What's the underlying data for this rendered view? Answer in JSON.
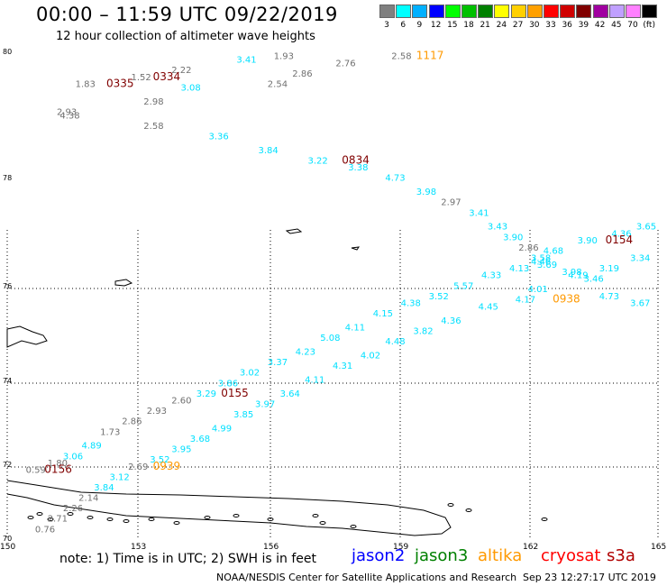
{
  "title": "00:00 – 11:59 UTC 09/22/2019",
  "subtitle": "12 hour collection of altimeter wave heights",
  "legend": {
    "colors": [
      "#808080",
      "#00ffff",
      "#00b0ff",
      "#0000ff",
      "#00ff00",
      "#00c000",
      "#008000",
      "#ffff00",
      "#ffd000",
      "#ffa000",
      "#ff0000",
      "#d00000",
      "#800000",
      "#a000a0",
      "#c0a0ff",
      "#ff80ff",
      "#000000"
    ],
    "labels": [
      "3",
      "6",
      "9",
      "12",
      "15",
      "18",
      "21",
      "24",
      "27",
      "30",
      "33",
      "36",
      "39",
      "42",
      "45",
      "70",
      "(ft)"
    ]
  },
  "axes": {
    "lon_ticks": [
      "150",
      "153",
      "156",
      "159",
      "162",
      "165"
    ],
    "lat_ticks": [
      "80",
      "78",
      "76",
      "74",
      "72",
      "70"
    ]
  },
  "notes": {
    "text": "note: 1) Time is in UTC; 2) SWH is in feet",
    "credit": "NOAA/NESDIS Center for Satellite Applications and Research",
    "generated": "Sep 23 12:27:17 UTC 2019"
  },
  "satellites": [
    {
      "name": "jason2",
      "color": "#0000ff"
    },
    {
      "name": "jason3",
      "color": "#008000"
    },
    {
      "name": "altika",
      "color": "#ff9900"
    },
    {
      "name": "cryosat",
      "color": "#ff0000"
    },
    {
      "name": "s3a",
      "color": "#b00000"
    }
  ],
  "colors": {
    "gray": "#707070",
    "cyan": "#00e0ff",
    "orange": "#ff9900",
    "maroon": "#800000"
  },
  "readings": [
    {
      "text": "1.93",
      "lon": 152.6,
      "lat": 79.8,
      "c": "gray"
    },
    {
      "text": "2.76",
      "lon": 154.6,
      "lat": 79.7,
      "c": "gray"
    },
    {
      "text": "2.58",
      "lon": 156.4,
      "lat": 79.8,
      "c": "gray"
    },
    {
      "text": "1117",
      "lon": 157.2,
      "lat": 79.8,
      "c": "orange"
    },
    {
      "text": "3.41",
      "lon": 151.4,
      "lat": 79.75,
      "c": "cyan"
    },
    {
      "text": "2.22",
      "lon": 149.3,
      "lat": 79.6,
      "c": "gray"
    },
    {
      "text": "2.86",
      "lon": 153.2,
      "lat": 79.55,
      "c": "gray"
    },
    {
      "text": "1.52",
      "lon": 148.0,
      "lat": 79.5,
      "c": "gray"
    },
    {
      "text": "0334",
      "lon": 148.7,
      "lat": 79.5,
      "c": "maroon"
    },
    {
      "text": "2.54",
      "lon": 152.4,
      "lat": 79.4,
      "c": "gray"
    },
    {
      "text": "1.83",
      "lon": 146.2,
      "lat": 79.4,
      "c": "gray"
    },
    {
      "text": "0335",
      "lon": 147.2,
      "lat": 79.4,
      "c": "maroon"
    },
    {
      "text": "3.08",
      "lon": 149.6,
      "lat": 79.35,
      "c": "cyan"
    },
    {
      "text": "2.98",
      "lon": 148.4,
      "lat": 79.15,
      "c": "gray"
    },
    {
      "text": "2.93",
      "lon": 145.6,
      "lat": 79.0,
      "c": "gray"
    },
    {
      "text": "4.38",
      "lon": 145.7,
      "lat": 78.95,
      "c": "gray"
    },
    {
      "text": "2.58",
      "lon": 148.4,
      "lat": 78.8,
      "c": "gray"
    },
    {
      "text": "3.36",
      "lon": 150.5,
      "lat": 78.65,
      "c": "cyan"
    },
    {
      "text": "3.84",
      "lon": 152.1,
      "lat": 78.45,
      "c": "cyan"
    },
    {
      "text": "3.22",
      "lon": 153.7,
      "lat": 78.3,
      "c": "cyan"
    },
    {
      "text": "0834",
      "lon": 154.8,
      "lat": 78.3,
      "c": "maroon"
    },
    {
      "text": "3.38",
      "lon": 155.0,
      "lat": 78.2,
      "c": "cyan"
    },
    {
      "text": "4.73",
      "lon": 156.2,
      "lat": 78.05,
      "c": "cyan"
    },
    {
      "text": "3.98",
      "lon": 157.2,
      "lat": 77.85,
      "c": "cyan"
    },
    {
      "text": "2.97",
      "lon": 158.0,
      "lat": 77.7,
      "c": "gray"
    },
    {
      "text": "3.41",
      "lon": 158.9,
      "lat": 77.55,
      "c": "cyan"
    },
    {
      "text": "3.43",
      "lon": 159.5,
      "lat": 77.35,
      "c": "cyan"
    },
    {
      "text": "3.90",
      "lon": 160.0,
      "lat": 77.2,
      "c": "cyan"
    },
    {
      "text": "2.86",
      "lon": 160.5,
      "lat": 77.05,
      "c": "gray"
    },
    {
      "text": "3.65",
      "lon": 164.3,
      "lat": 77.35,
      "c": "cyan"
    },
    {
      "text": "4.36",
      "lon": 163.5,
      "lat": 77.25,
      "c": "cyan"
    },
    {
      "text": "0154",
      "lon": 163.3,
      "lat": 77.15,
      "c": "maroon"
    },
    {
      "text": "3.90",
      "lon": 162.4,
      "lat": 77.15,
      "c": "cyan"
    },
    {
      "text": "4.68",
      "lon": 161.3,
      "lat": 77.0,
      "c": "cyan"
    },
    {
      "text": "3.58",
      "lon": 160.9,
      "lat": 76.9,
      "c": "cyan"
    },
    {
      "text": "4.46",
      "lon": 160.9,
      "lat": 76.85,
      "c": "cyan"
    },
    {
      "text": "3.69",
      "lon": 161.1,
      "lat": 76.8,
      "c": "cyan"
    },
    {
      "text": "3.34",
      "lon": 164.1,
      "lat": 76.9,
      "c": "cyan"
    },
    {
      "text": "4.13",
      "lon": 160.2,
      "lat": 76.75,
      "c": "cyan"
    },
    {
      "text": "3.19",
      "lon": 163.1,
      "lat": 76.75,
      "c": "cyan"
    },
    {
      "text": "3.98",
      "lon": 161.9,
      "lat": 76.7,
      "c": "cyan"
    },
    {
      "text": "4.19",
      "lon": 162.1,
      "lat": 76.65,
      "c": "cyan"
    },
    {
      "text": "4.33",
      "lon": 159.3,
      "lat": 76.65,
      "c": "cyan"
    },
    {
      "text": "3.46",
      "lon": 162.6,
      "lat": 76.6,
      "c": "cyan"
    },
    {
      "text": "5.57",
      "lon": 158.4,
      "lat": 76.5,
      "c": "cyan"
    },
    {
      "text": "4.01",
      "lon": 160.8,
      "lat": 76.45,
      "c": "cyan"
    },
    {
      "text": "4.73",
      "lon": 163.1,
      "lat": 76.35,
      "c": "cyan"
    },
    {
      "text": "3.52",
      "lon": 157.6,
      "lat": 76.35,
      "c": "cyan"
    },
    {
      "text": "0938",
      "lon": 161.6,
      "lat": 76.3,
      "c": "orange"
    },
    {
      "text": "4.17",
      "lon": 160.4,
      "lat": 76.3,
      "c": "cyan"
    },
    {
      "text": "3.67",
      "lon": 164.1,
      "lat": 76.25,
      "c": "cyan"
    },
    {
      "text": "4.38",
      "lon": 156.7,
      "lat": 76.25,
      "c": "cyan"
    },
    {
      "text": "4.45",
      "lon": 159.2,
      "lat": 76.2,
      "c": "cyan"
    },
    {
      "text": "4.15",
      "lon": 155.8,
      "lat": 76.1,
      "c": "cyan"
    },
    {
      "text": "4.36",
      "lon": 158.0,
      "lat": 76.0,
      "c": "cyan"
    },
    {
      "text": "4.11",
      "lon": 154.9,
      "lat": 75.9,
      "c": "cyan"
    },
    {
      "text": "3.82",
      "lon": 157.1,
      "lat": 75.85,
      "c": "cyan"
    },
    {
      "text": "5.08",
      "lon": 154.1,
      "lat": 75.75,
      "c": "cyan"
    },
    {
      "text": "4.48",
      "lon": 156.2,
      "lat": 75.7,
      "c": "cyan"
    },
    {
      "text": "4.23",
      "lon": 153.3,
      "lat": 75.55,
      "c": "cyan"
    },
    {
      "text": "4.02",
      "lon": 155.4,
      "lat": 75.5,
      "c": "cyan"
    },
    {
      "text": "3.37",
      "lon": 152.4,
      "lat": 75.4,
      "c": "cyan"
    },
    {
      "text": "4.31",
      "lon": 154.5,
      "lat": 75.35,
      "c": "cyan"
    },
    {
      "text": "3.02",
      "lon": 151.5,
      "lat": 75.25,
      "c": "cyan"
    },
    {
      "text": "4.11",
      "lon": 153.6,
      "lat": 75.15,
      "c": "cyan"
    },
    {
      "text": "3.86",
      "lon": 150.8,
      "lat": 75.1,
      "c": "cyan"
    },
    {
      "text": "3.64",
      "lon": 152.8,
      "lat": 74.95,
      "c": "cyan"
    },
    {
      "text": "3.29",
      "lon": 150.1,
      "lat": 74.95,
      "c": "cyan"
    },
    {
      "text": "0155",
      "lon": 150.9,
      "lat": 74.95,
      "c": "maroon"
    },
    {
      "text": "2.60",
      "lon": 149.3,
      "lat": 74.85,
      "c": "gray"
    },
    {
      "text": "3.97",
      "lon": 152.0,
      "lat": 74.8,
      "c": "cyan"
    },
    {
      "text": "2.93",
      "lon": 148.5,
      "lat": 74.7,
      "c": "gray"
    },
    {
      "text": "3.85",
      "lon": 151.3,
      "lat": 74.65,
      "c": "cyan"
    },
    {
      "text": "2.86",
      "lon": 147.7,
      "lat": 74.55,
      "c": "gray"
    },
    {
      "text": "4.99",
      "lon": 150.6,
      "lat": 74.45,
      "c": "cyan"
    },
    {
      "text": "1.73",
      "lon": 147.0,
      "lat": 74.4,
      "c": "gray"
    },
    {
      "text": "3.68",
      "lon": 149.9,
      "lat": 74.3,
      "c": "cyan"
    },
    {
      "text": "4.89",
      "lon": 146.4,
      "lat": 74.2,
      "c": "cyan"
    },
    {
      "text": "3.95",
      "lon": 149.3,
      "lat": 74.15,
      "c": "cyan"
    },
    {
      "text": "3.06",
      "lon": 145.8,
      "lat": 74.05,
      "c": "cyan"
    },
    {
      "text": "3.52",
      "lon": 148.6,
      "lat": 74.0,
      "c": "cyan"
    },
    {
      "text": "1.80",
      "lon": 145.3,
      "lat": 73.95,
      "c": "gray"
    },
    {
      "text": "0939",
      "lon": 148.7,
      "lat": 73.9,
      "c": "orange"
    },
    {
      "text": "2.69",
      "lon": 147.9,
      "lat": 73.9,
      "c": "gray"
    },
    {
      "text": "0.59",
      "lon": 144.6,
      "lat": 73.85,
      "c": "gray"
    },
    {
      "text": "0156",
      "lon": 145.2,
      "lat": 73.85,
      "c": "maroon"
    },
    {
      "text": "3.12",
      "lon": 147.3,
      "lat": 73.75,
      "c": "cyan"
    },
    {
      "text": "3.84",
      "lon": 146.8,
      "lat": 73.6,
      "c": "cyan"
    },
    {
      "text": "2.14",
      "lon": 146.3,
      "lat": 73.45,
      "c": "gray"
    },
    {
      "text": "2.26",
      "lon": 145.8,
      "lat": 73.3,
      "c": "gray"
    },
    {
      "text": "2.71",
      "lon": 145.3,
      "lat": 73.15,
      "c": "gray"
    },
    {
      "text": "0.76",
      "lon": 144.9,
      "lat": 73.0,
      "c": "gray"
    }
  ]
}
